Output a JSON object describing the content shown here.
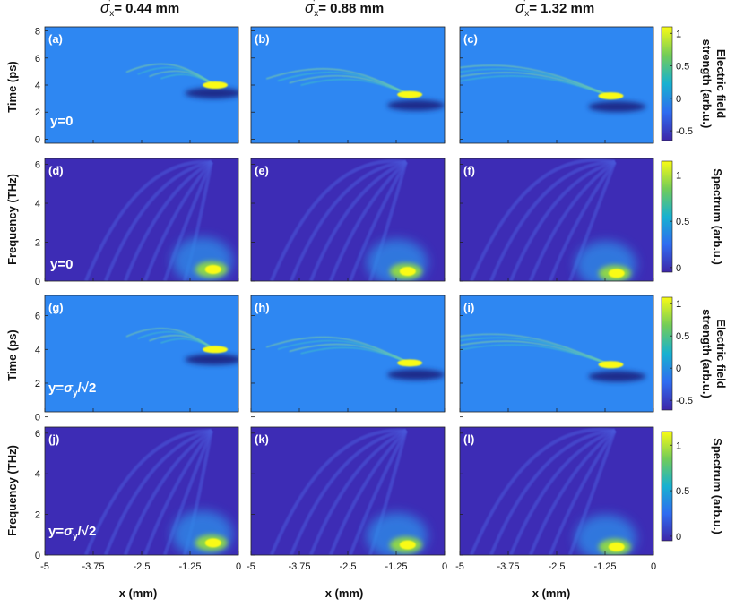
{
  "figure": {
    "column_titles": [
      {
        "sym": "σ",
        "sub": "x",
        "sup": "'",
        "value": "= 0.44 mm"
      },
      {
        "sym": "σ",
        "sub": "x",
        "sup": "'",
        "value": "= 0.88 mm"
      },
      {
        "sym": "σ",
        "sub": "x",
        "sup": "'",
        "value": "= 1.32 mm"
      }
    ],
    "ylabel_time": "Time (ps)",
    "ylabel_freq": "Frequency (THz)",
    "xlabel": "x (mm)",
    "colorbars": [
      {
        "line1": "Electric field",
        "line2": "strength (arb.u.)",
        "ticks": [
          "1",
          "0.5",
          "0",
          "-0.5"
        ]
      },
      {
        "line1": "",
        "line2": "Spectrum (arb.u.)",
        "ticks": [
          "1",
          "0.5",
          "0"
        ]
      },
      {
        "line1": "Electric field",
        "line2": "strength (arb.u.)",
        "ticks": [
          "1",
          "0.5",
          "0",
          "-0.5"
        ]
      },
      {
        "line1": "",
        "line2": "Spectrum (arb.u.)",
        "ticks": [
          "1",
          "0.5",
          "0"
        ]
      }
    ],
    "annotations": {
      "y0": "y=0",
      "ysig_prefix": "y=",
      "ysig_sym": "σ",
      "ysig_sub": "y",
      "ysig_rest": "/√2"
    }
  },
  "chart_data": [
    {
      "type": "heatmap",
      "panel": "(a)",
      "quantity": "Electric field strength",
      "x_ticks": [
        "-5",
        "-3.75",
        "-2.5",
        "-1.25",
        "0"
      ],
      "xlim": [
        -5,
        0
      ],
      "y_ticks": [
        "0",
        "2",
        "4",
        "6",
        "8"
      ],
      "ylim": [
        -0.3,
        8.3
      ],
      "peak": {
        "x": -0.6,
        "y": 4.0,
        "value": 1.0
      },
      "trough": {
        "x": -0.5,
        "y": 3.4,
        "value": -0.6
      }
    },
    {
      "type": "heatmap",
      "panel": "(b)",
      "quantity": "Electric field strength",
      "x_ticks": [
        "-5",
        "-3.75",
        "-2.5",
        "-1.25",
        "0"
      ],
      "xlim": [
        -5,
        0
      ],
      "y_ticks": [
        "0",
        "2",
        "4",
        "6",
        "8"
      ],
      "ylim": [
        -0.3,
        8.3
      ],
      "peak": {
        "x": -0.9,
        "y": 3.3,
        "value": 1.0
      },
      "trough": {
        "x": -0.6,
        "y": 2.5,
        "value": -0.6
      }
    },
    {
      "type": "heatmap",
      "panel": "(c)",
      "quantity": "Electric field strength",
      "x_ticks": [
        "-5",
        "-3.75",
        "-2.5",
        "-1.25",
        "0"
      ],
      "xlim": [
        -5,
        0
      ],
      "y_ticks": [
        "0",
        "2",
        "4",
        "6",
        "8"
      ],
      "ylim": [
        -0.3,
        8.3
      ],
      "peak": {
        "x": -1.1,
        "y": 3.2,
        "value": 1.0
      },
      "trough": {
        "x": -0.8,
        "y": 2.4,
        "value": -0.6
      }
    },
    {
      "type": "heatmap",
      "panel": "(d)",
      "quantity": "Spectrum",
      "annotation": "y=0",
      "x_ticks": [
        "-5",
        "-3.75",
        "-2.5",
        "-1.25",
        "0"
      ],
      "xlim": [
        -5,
        0
      ],
      "y_ticks": [
        "0",
        "2",
        "4",
        "6"
      ],
      "ylim": [
        0,
        6.3
      ],
      "peak": {
        "x": -0.7,
        "y": 0.6,
        "value": 1.0
      }
    },
    {
      "type": "heatmap",
      "panel": "(e)",
      "quantity": "Spectrum",
      "x_ticks": [
        "-5",
        "-3.75",
        "-2.5",
        "-1.25",
        "0"
      ],
      "xlim": [
        -5,
        0
      ],
      "y_ticks": [
        "0",
        "2",
        "4",
        "6"
      ],
      "ylim": [
        0,
        6.3
      ],
      "peak": {
        "x": -1.0,
        "y": 0.5,
        "value": 1.0
      }
    },
    {
      "type": "heatmap",
      "panel": "(f)",
      "quantity": "Spectrum",
      "x_ticks": [
        "-5",
        "-3.75",
        "-2.5",
        "-1.25",
        "0"
      ],
      "xlim": [
        -5,
        0
      ],
      "y_ticks": [
        "0",
        "2",
        "4",
        "6"
      ],
      "ylim": [
        0,
        6.3
      ],
      "peak": {
        "x": -1.0,
        "y": 0.4,
        "value": 1.0
      }
    },
    {
      "type": "heatmap",
      "panel": "(g)",
      "quantity": "Electric field strength",
      "x_ticks": [
        "-5",
        "-3.75",
        "-2.5",
        "-1.25",
        "0"
      ],
      "xlim": [
        -5,
        0
      ],
      "y_ticks": [
        "0",
        "2",
        "4",
        "6"
      ],
      "ylim": [
        0.3,
        7.2
      ],
      "peak": {
        "x": -0.6,
        "y": 4.0,
        "value": 1.0
      },
      "trough": {
        "x": -0.5,
        "y": 3.4,
        "value": -0.6
      }
    },
    {
      "type": "heatmap",
      "panel": "(h)",
      "quantity": "Electric field strength",
      "x_ticks": [
        "-5",
        "-3.75",
        "-2.5",
        "-1.25",
        "0"
      ],
      "xlim": [
        -5,
        0
      ],
      "y_ticks": [
        "0",
        "2",
        "4",
        "6"
      ],
      "ylim": [
        0.3,
        7.2
      ],
      "peak": {
        "x": -0.9,
        "y": 3.2,
        "value": 1.0
      },
      "trough": {
        "x": -0.6,
        "y": 2.5,
        "value": -0.6
      }
    },
    {
      "type": "heatmap",
      "panel": "(i)",
      "quantity": "Electric field strength",
      "x_ticks": [
        "-5",
        "-3.75",
        "-2.5",
        "-1.25",
        "0"
      ],
      "xlim": [
        -5,
        0
      ],
      "y_ticks": [
        "0",
        "2",
        "4",
        "6"
      ],
      "ylim": [
        0.3,
        7.2
      ],
      "peak": {
        "x": -1.1,
        "y": 3.1,
        "value": 1.0
      },
      "trough": {
        "x": -0.8,
        "y": 2.4,
        "value": -0.6
      }
    },
    {
      "type": "heatmap",
      "panel": "(j)",
      "quantity": "Spectrum",
      "x_ticks": [
        "-5",
        "-3.75",
        "-2.5",
        "-1.25",
        "0"
      ],
      "xlim": [
        -5,
        0
      ],
      "y_ticks": [
        "0",
        "2",
        "4",
        "6"
      ],
      "ylim": [
        0,
        6.3
      ],
      "peak": {
        "x": -0.7,
        "y": 0.6,
        "value": 1.0
      }
    },
    {
      "type": "heatmap",
      "panel": "(k)",
      "quantity": "Spectrum",
      "x_ticks": [
        "-5",
        "-3.75",
        "-2.5",
        "-1.25",
        "0"
      ],
      "xlim": [
        -5,
        0
      ],
      "y_ticks": [
        "0",
        "2",
        "4",
        "6"
      ],
      "ylim": [
        0,
        6.3
      ],
      "peak": {
        "x": -1.0,
        "y": 0.5,
        "value": 1.0
      }
    },
    {
      "type": "heatmap",
      "panel": "(l)",
      "quantity": "Spectrum",
      "x_ticks": [
        "-5",
        "-3.75",
        "-2.5",
        "-1.25",
        "0"
      ],
      "xlim": [
        -5,
        0
      ],
      "y_ticks": [
        "0",
        "2",
        "4",
        "6"
      ],
      "ylim": [
        0,
        6.3
      ],
      "peak": {
        "x": -1.0,
        "y": 0.4,
        "value": 1.0
      }
    }
  ]
}
